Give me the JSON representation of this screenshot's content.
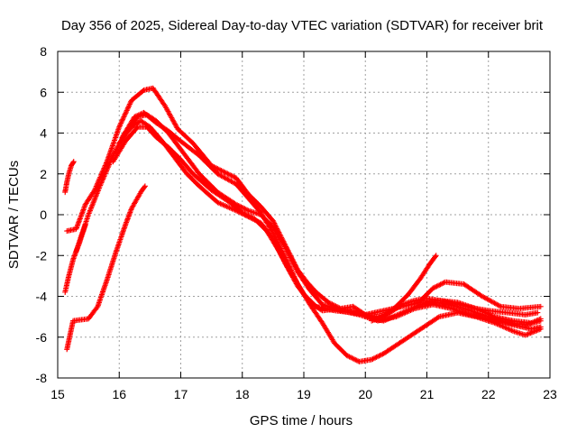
{
  "chart_data": {
    "type": "scatter",
    "title": "Day 356 of 2025, Sidereal Day-to-day VTEC variation (SDTVAR) for receiver brit",
    "xlabel": "GPS time / hours",
    "ylabel": "SDTVAR / TECUs",
    "xlim": [
      15,
      23
    ],
    "ylim": [
      -8,
      8
    ],
    "xticks": [
      15,
      16,
      17,
      18,
      19,
      20,
      21,
      22,
      23
    ],
    "yticks": [
      -8,
      -6,
      -4,
      -2,
      0,
      2,
      4,
      6,
      8
    ],
    "grid": true,
    "marker": "+",
    "color": "#ff0000",
    "series": [
      {
        "name": "track-1",
        "points": [
          [
            15.15,
            -0.8
          ],
          [
            15.3,
            -0.7
          ],
          [
            15.45,
            0.5
          ],
          [
            15.6,
            1.2
          ],
          [
            15.8,
            2.6
          ],
          [
            16.0,
            4.3
          ],
          [
            16.2,
            5.6
          ],
          [
            16.4,
            6.1
          ],
          [
            16.55,
            6.2
          ],
          [
            16.75,
            5.3
          ],
          [
            16.95,
            4.2
          ],
          [
            17.2,
            3.5
          ],
          [
            17.5,
            2.4
          ],
          [
            17.7,
            2.1
          ],
          [
            17.9,
            1.8
          ],
          [
            18.1,
            1.0
          ],
          [
            18.3,
            0.4
          ],
          [
            18.5,
            -0.3
          ],
          [
            18.7,
            -1.5
          ],
          [
            18.9,
            -2.7
          ],
          [
            19.05,
            -3.3
          ],
          [
            19.2,
            -3.8
          ],
          [
            19.4,
            -4.3
          ],
          [
            19.6,
            -4.6
          ],
          [
            19.8,
            -4.5
          ],
          [
            20.0,
            -4.9
          ],
          [
            20.2,
            -5.0
          ],
          [
            20.4,
            -4.8
          ],
          [
            20.6,
            -4.4
          ],
          [
            20.8,
            -4.2
          ],
          [
            21.0,
            -4.1
          ],
          [
            21.2,
            -4.2
          ],
          [
            21.5,
            -4.4
          ],
          [
            21.8,
            -4.6
          ],
          [
            22.0,
            -4.7
          ],
          [
            22.3,
            -4.8
          ],
          [
            22.6,
            -4.9
          ],
          [
            22.8,
            -4.8
          ]
        ]
      },
      {
        "name": "track-2",
        "points": [
          [
            15.3,
            -1.8
          ],
          [
            15.5,
            0.0
          ],
          [
            15.7,
            1.5
          ],
          [
            15.9,
            2.9
          ],
          [
            16.1,
            4.0
          ],
          [
            16.3,
            4.8
          ],
          [
            16.45,
            4.9
          ],
          [
            16.6,
            4.6
          ],
          [
            16.8,
            4.0
          ],
          [
            17.0,
            3.2
          ],
          [
            17.3,
            2.0
          ],
          [
            17.6,
            1.1
          ],
          [
            17.9,
            0.5
          ],
          [
            18.1,
            0.2
          ],
          [
            18.3,
            0.0
          ],
          [
            18.5,
            -0.6
          ],
          [
            18.7,
            -1.6
          ],
          [
            18.9,
            -2.8
          ],
          [
            19.1,
            -3.7
          ],
          [
            19.3,
            -4.4
          ],
          [
            19.6,
            -4.7
          ],
          [
            19.9,
            -4.9
          ],
          [
            20.1,
            -5.1
          ],
          [
            20.3,
            -5.2
          ],
          [
            20.6,
            -4.8
          ],
          [
            20.9,
            -4.4
          ],
          [
            21.2,
            -4.2
          ],
          [
            21.5,
            -4.3
          ],
          [
            21.8,
            -4.6
          ],
          [
            22.1,
            -5.0
          ],
          [
            22.4,
            -5.2
          ],
          [
            22.7,
            -5.3
          ],
          [
            22.85,
            -5.1
          ]
        ]
      },
      {
        "name": "track-3",
        "points": [
          [
            15.9,
            2.6
          ],
          [
            16.1,
            3.6
          ],
          [
            16.3,
            4.3
          ],
          [
            16.45,
            4.3
          ],
          [
            16.6,
            3.8
          ],
          [
            16.8,
            3.3
          ],
          [
            17.0,
            2.7
          ],
          [
            17.2,
            2.0
          ],
          [
            17.5,
            1.2
          ],
          [
            17.8,
            0.6
          ],
          [
            18.0,
            0.1
          ],
          [
            18.2,
            -0.2
          ],
          [
            18.4,
            -0.8
          ],
          [
            18.6,
            -1.8
          ],
          [
            18.8,
            -2.9
          ],
          [
            19.0,
            -3.9
          ],
          [
            19.2,
            -4.5
          ],
          [
            19.5,
            -4.7
          ],
          [
            19.8,
            -4.8
          ],
          [
            20.0,
            -4.9
          ],
          [
            20.3,
            -4.7
          ],
          [
            20.6,
            -4.5
          ],
          [
            20.9,
            -4.3
          ],
          [
            21.2,
            -4.3
          ],
          [
            21.5,
            -4.5
          ],
          [
            21.8,
            -4.8
          ],
          [
            22.1,
            -5.1
          ],
          [
            22.4,
            -5.4
          ],
          [
            22.7,
            -5.6
          ],
          [
            22.85,
            -5.5
          ]
        ]
      },
      {
        "name": "track-4",
        "points": [
          [
            16.0,
            3.5
          ],
          [
            16.2,
            4.3
          ],
          [
            16.35,
            4.6
          ],
          [
            16.5,
            4.3
          ],
          [
            16.7,
            3.6
          ],
          [
            16.9,
            2.8
          ],
          [
            17.1,
            2.0
          ],
          [
            17.3,
            1.4
          ],
          [
            17.6,
            0.6
          ],
          [
            17.9,
            0.2
          ],
          [
            18.1,
            -0.1
          ],
          [
            18.3,
            -0.4
          ],
          [
            18.5,
            -1.2
          ],
          [
            18.7,
            -2.4
          ],
          [
            18.9,
            -3.5
          ],
          [
            19.1,
            -4.3
          ],
          [
            19.3,
            -4.7
          ],
          [
            19.6,
            -4.6
          ],
          [
            19.9,
            -4.8
          ],
          [
            20.2,
            -5.2
          ],
          [
            20.5,
            -5.0
          ],
          [
            20.8,
            -4.6
          ],
          [
            21.1,
            -4.4
          ],
          [
            21.4,
            -4.6
          ],
          [
            21.7,
            -4.9
          ],
          [
            22.0,
            -5.1
          ],
          [
            22.3,
            -5.3
          ],
          [
            22.6,
            -5.4
          ],
          [
            22.85,
            -5.2
          ]
        ]
      },
      {
        "name": "track-5",
        "points": [
          [
            15.15,
            -6.6
          ],
          [
            15.25,
            -5.2
          ],
          [
            15.5,
            -5.1
          ],
          [
            15.65,
            -4.5
          ],
          [
            15.8,
            -3.2
          ],
          [
            15.95,
            -1.8
          ],
          [
            16.1,
            -0.5
          ],
          [
            16.2,
            0.3
          ],
          [
            16.35,
            1.1
          ],
          [
            16.42,
            1.4
          ]
        ]
      },
      {
        "name": "track-6",
        "points": [
          [
            16.05,
            3.8
          ],
          [
            16.25,
            4.8
          ],
          [
            16.4,
            5.0
          ],
          [
            16.6,
            4.5
          ],
          [
            16.8,
            4.1
          ],
          [
            17.0,
            3.6
          ],
          [
            17.3,
            2.9
          ],
          [
            17.6,
            2.0
          ],
          [
            17.9,
            1.5
          ],
          [
            18.1,
            0.8
          ],
          [
            18.3,
            0.1
          ],
          [
            18.5,
            -0.9
          ],
          [
            18.7,
            -2.1
          ],
          [
            18.9,
            -3.4
          ],
          [
            19.1,
            -4.4
          ],
          [
            19.3,
            -5.3
          ],
          [
            19.5,
            -6.3
          ],
          [
            19.7,
            -6.9
          ],
          [
            19.9,
            -7.2
          ],
          [
            20.1,
            -7.1
          ],
          [
            20.3,
            -6.8
          ],
          [
            20.6,
            -6.2
          ],
          [
            20.9,
            -5.6
          ],
          [
            21.2,
            -5.0
          ],
          [
            21.5,
            -4.8
          ],
          [
            21.8,
            -5.0
          ],
          [
            22.1,
            -5.3
          ],
          [
            22.4,
            -5.7
          ],
          [
            22.6,
            -5.9
          ],
          [
            22.85,
            -5.6
          ]
        ]
      },
      {
        "name": "track-7",
        "points": [
          [
            20.1,
            -5.2
          ],
          [
            20.3,
            -5.0
          ],
          [
            20.5,
            -4.5
          ],
          [
            20.7,
            -3.9
          ],
          [
            20.9,
            -3.1
          ],
          [
            21.05,
            -2.4
          ],
          [
            21.15,
            -2.0
          ]
        ]
      },
      {
        "name": "track-8",
        "points": [
          [
            15.12,
            1.1
          ],
          [
            15.15,
            1.6
          ],
          [
            15.18,
            2.0
          ],
          [
            15.22,
            2.4
          ],
          [
            15.26,
            2.6
          ]
        ]
      },
      {
        "name": "track-9",
        "points": [
          [
            15.12,
            -3.8
          ],
          [
            15.18,
            -3.0
          ],
          [
            15.25,
            -2.2
          ],
          [
            15.35,
            -1.4
          ],
          [
            15.45,
            -0.5
          ]
        ]
      },
      {
        "name": "track-10",
        "points": [
          [
            20.9,
            -4.2
          ],
          [
            21.1,
            -3.6
          ],
          [
            21.3,
            -3.3
          ],
          [
            21.6,
            -3.4
          ],
          [
            21.9,
            -4.0
          ],
          [
            22.2,
            -4.5
          ],
          [
            22.5,
            -4.6
          ],
          [
            22.85,
            -4.5
          ]
        ]
      }
    ]
  }
}
